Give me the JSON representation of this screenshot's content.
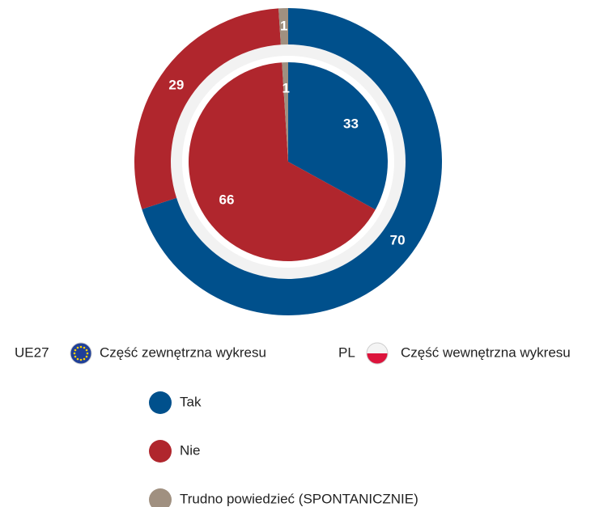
{
  "chart_data": {
    "type": "nested-pie",
    "categories": [
      "Tak",
      "Nie",
      "Trudno powiedzieć (SPONTANICZNIE)"
    ],
    "colors": [
      "#00508c",
      "#b0262d",
      "#a09080"
    ],
    "series": [
      {
        "name": "UE27",
        "description": "Część zewnętrzna wykresu",
        "values": [
          70,
          29,
          1
        ]
      },
      {
        "name": "PL",
        "description": "Część wewnętrzna wykresu",
        "values": [
          33,
          66,
          1
        ]
      }
    ]
  }
}
